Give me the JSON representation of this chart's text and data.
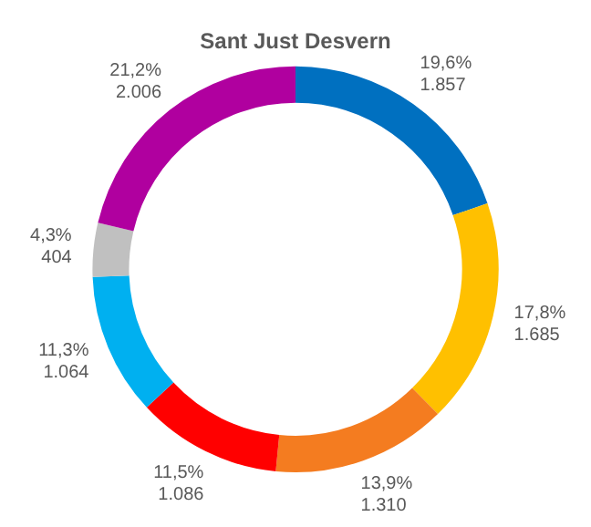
{
  "chart_data": {
    "type": "donut",
    "title": "Sant Just Desvern",
    "categories": [
      null,
      null,
      null,
      null,
      null,
      null,
      null
    ],
    "values": [
      1857,
      1685,
      1310,
      1086,
      1064,
      404,
      2006
    ],
    "colors": [
      "#0070c0",
      "#ffc000",
      "#f47c20",
      "#ff0000",
      "#00b0f0",
      "#c0c0c0",
      "#b0009f"
    ],
    "value_labels": [
      "19,6%\n1.857",
      "17,8%\n1.685",
      "13,9%\n1.310",
      "11,5%\n1.086",
      "11,3%\n1.064",
      "4,3%\n404",
      "21,2%\n2.006"
    ],
    "legend": false
  }
}
